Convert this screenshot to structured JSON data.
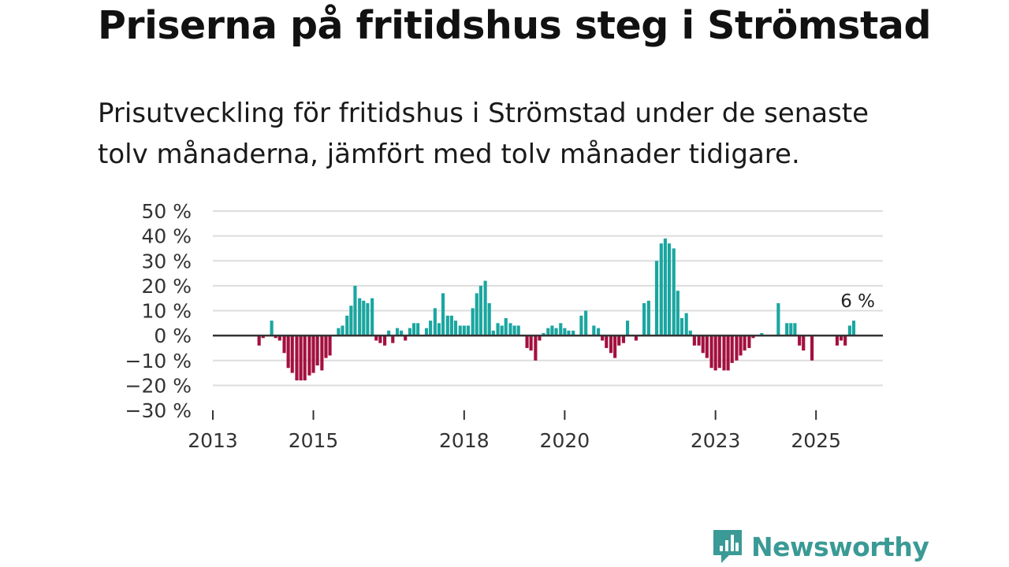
{
  "header": {
    "title": "Priserna på fritidshus steg i Strömstad",
    "subtitle": "Prisutveckling för fritidshus i Strömstad under de senaste tolv månaderna, jämfört med tolv månader tidigare."
  },
  "brand": {
    "name": "Newsworthy",
    "icon": "newsworthy-logo-icon",
    "color": "#3a9a95"
  },
  "chart_data": {
    "type": "bar",
    "title": "Priserna på fritidshus steg i Strömstad",
    "ylabel": "",
    "xlabel": "",
    "ylim": [
      -30,
      50
    ],
    "yticks": [
      50,
      40,
      30,
      20,
      10,
      0,
      -10,
      -20,
      -30
    ],
    "ytick_labels": [
      "50 %",
      "40 %",
      "30 %",
      "20 %",
      "10 %",
      "0 %",
      "−10 %",
      "−20 %",
      "−30 %"
    ],
    "xlim": [
      2013.0,
      2026.33
    ],
    "xticks": [
      2013,
      2015,
      2018,
      2020,
      2023,
      2025
    ],
    "xtick_labels": [
      "2013",
      "2015",
      "2018",
      "2020",
      "2023",
      "2025"
    ],
    "positive_color": "#1aa6a0",
    "negative_color": "#a3103f",
    "gridlines": true,
    "annotation": {
      "x": 2025.83,
      "label": "6 %"
    },
    "bars": [
      {
        "x": 2013.92,
        "y": -4
      },
      {
        "x": 2014.0,
        "y": -1
      },
      {
        "x": 2014.17,
        "y": 6
      },
      {
        "x": 2014.25,
        "y": -1
      },
      {
        "x": 2014.33,
        "y": -2
      },
      {
        "x": 2014.42,
        "y": -7
      },
      {
        "x": 2014.5,
        "y": -13
      },
      {
        "x": 2014.58,
        "y": -15
      },
      {
        "x": 2014.67,
        "y": -18
      },
      {
        "x": 2014.75,
        "y": -18
      },
      {
        "x": 2014.83,
        "y": -18
      },
      {
        "x": 2014.92,
        "y": -16
      },
      {
        "x": 2015.0,
        "y": -15
      },
      {
        "x": 2015.08,
        "y": -12
      },
      {
        "x": 2015.17,
        "y": -14
      },
      {
        "x": 2015.25,
        "y": -9
      },
      {
        "x": 2015.33,
        "y": -8
      },
      {
        "x": 2015.5,
        "y": 3
      },
      {
        "x": 2015.58,
        "y": 4
      },
      {
        "x": 2015.67,
        "y": 8
      },
      {
        "x": 2015.75,
        "y": 12
      },
      {
        "x": 2015.83,
        "y": 20
      },
      {
        "x": 2015.92,
        "y": 15
      },
      {
        "x": 2016.0,
        "y": 14
      },
      {
        "x": 2016.08,
        "y": 13
      },
      {
        "x": 2016.17,
        "y": 15
      },
      {
        "x": 2016.25,
        "y": -2
      },
      {
        "x": 2016.33,
        "y": -3
      },
      {
        "x": 2016.42,
        "y": -4
      },
      {
        "x": 2016.5,
        "y": 2
      },
      {
        "x": 2016.58,
        "y": -3
      },
      {
        "x": 2016.67,
        "y": 3
      },
      {
        "x": 2016.75,
        "y": 2
      },
      {
        "x": 2016.83,
        "y": -2
      },
      {
        "x": 2016.92,
        "y": 3
      },
      {
        "x": 2017.0,
        "y": 5
      },
      {
        "x": 2017.08,
        "y": 5
      },
      {
        "x": 2017.25,
        "y": 3
      },
      {
        "x": 2017.33,
        "y": 6
      },
      {
        "x": 2017.42,
        "y": 11
      },
      {
        "x": 2017.5,
        "y": 5
      },
      {
        "x": 2017.58,
        "y": 17
      },
      {
        "x": 2017.67,
        "y": 8
      },
      {
        "x": 2017.75,
        "y": 8
      },
      {
        "x": 2017.83,
        "y": 6
      },
      {
        "x": 2017.92,
        "y": 4
      },
      {
        "x": 2018.0,
        "y": 4
      },
      {
        "x": 2018.08,
        "y": 4
      },
      {
        "x": 2018.17,
        "y": 11
      },
      {
        "x": 2018.25,
        "y": 17
      },
      {
        "x": 2018.33,
        "y": 20
      },
      {
        "x": 2018.42,
        "y": 22
      },
      {
        "x": 2018.5,
        "y": 13
      },
      {
        "x": 2018.58,
        "y": 2
      },
      {
        "x": 2018.67,
        "y": 5
      },
      {
        "x": 2018.75,
        "y": 4
      },
      {
        "x": 2018.83,
        "y": 7
      },
      {
        "x": 2018.92,
        "y": 5
      },
      {
        "x": 2019.0,
        "y": 4
      },
      {
        "x": 2019.08,
        "y": 4
      },
      {
        "x": 2019.25,
        "y": -5
      },
      {
        "x": 2019.33,
        "y": -6
      },
      {
        "x": 2019.42,
        "y": -10
      },
      {
        "x": 2019.5,
        "y": -2
      },
      {
        "x": 2019.58,
        "y": 1
      },
      {
        "x": 2019.67,
        "y": 3
      },
      {
        "x": 2019.75,
        "y": 4
      },
      {
        "x": 2019.83,
        "y": 3
      },
      {
        "x": 2019.92,
        "y": 5
      },
      {
        "x": 2020.0,
        "y": 3
      },
      {
        "x": 2020.08,
        "y": 2
      },
      {
        "x": 2020.17,
        "y": 2
      },
      {
        "x": 2020.33,
        "y": 8
      },
      {
        "x": 2020.42,
        "y": 10
      },
      {
        "x": 2020.58,
        "y": 4
      },
      {
        "x": 2020.67,
        "y": 3
      },
      {
        "x": 2020.75,
        "y": -2
      },
      {
        "x": 2020.83,
        "y": -5
      },
      {
        "x": 2020.92,
        "y": -7
      },
      {
        "x": 2021.0,
        "y": -9
      },
      {
        "x": 2021.08,
        "y": -4
      },
      {
        "x": 2021.17,
        "y": -3
      },
      {
        "x": 2021.25,
        "y": 6
      },
      {
        "x": 2021.42,
        "y": -2
      },
      {
        "x": 2021.58,
        "y": 13
      },
      {
        "x": 2021.67,
        "y": 14
      },
      {
        "x": 2021.83,
        "y": 30
      },
      {
        "x": 2021.92,
        "y": 37
      },
      {
        "x": 2022.0,
        "y": 39
      },
      {
        "x": 2022.08,
        "y": 37
      },
      {
        "x": 2022.17,
        "y": 35
      },
      {
        "x": 2022.25,
        "y": 18
      },
      {
        "x": 2022.33,
        "y": 7
      },
      {
        "x": 2022.42,
        "y": 9
      },
      {
        "x": 2022.5,
        "y": 2
      },
      {
        "x": 2022.58,
        "y": -4
      },
      {
        "x": 2022.67,
        "y": -4
      },
      {
        "x": 2022.75,
        "y": -7
      },
      {
        "x": 2022.83,
        "y": -9
      },
      {
        "x": 2022.92,
        "y": -13
      },
      {
        "x": 2023.0,
        "y": -14
      },
      {
        "x": 2023.08,
        "y": -13
      },
      {
        "x": 2023.17,
        "y": -14
      },
      {
        "x": 2023.25,
        "y": -14
      },
      {
        "x": 2023.33,
        "y": -11
      },
      {
        "x": 2023.42,
        "y": -10
      },
      {
        "x": 2023.5,
        "y": -8
      },
      {
        "x": 2023.58,
        "y": -6
      },
      {
        "x": 2023.67,
        "y": -5
      },
      {
        "x": 2023.75,
        "y": -1
      },
      {
        "x": 2023.92,
        "y": 1
      },
      {
        "x": 2024.25,
        "y": 13
      },
      {
        "x": 2024.42,
        "y": 5
      },
      {
        "x": 2024.5,
        "y": 5
      },
      {
        "x": 2024.58,
        "y": 5
      },
      {
        "x": 2024.67,
        "y": -4
      },
      {
        "x": 2024.75,
        "y": -6
      },
      {
        "x": 2024.92,
        "y": -10
      },
      {
        "x": 2025.42,
        "y": -4
      },
      {
        "x": 2025.5,
        "y": -2
      },
      {
        "x": 2025.58,
        "y": -4
      },
      {
        "x": 2025.67,
        "y": 4
      },
      {
        "x": 2025.75,
        "y": 6
      }
    ]
  }
}
